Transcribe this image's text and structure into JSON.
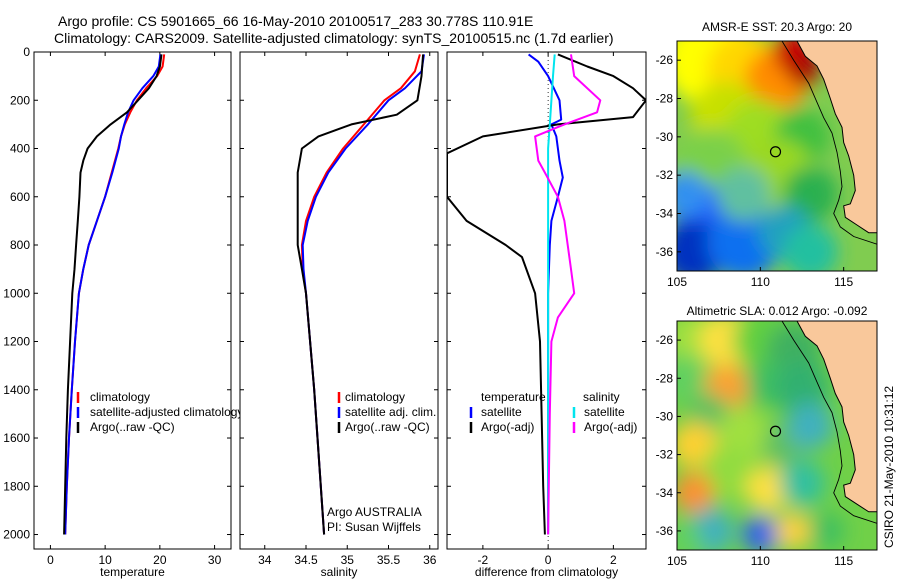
{
  "header": {
    "line1": "Argo profile: CS 5901665_66 16-May-2010 20100517_283 30.778S 110.91E",
    "line2": "Climatology: CARS2009. Satellite-adjusted climatology: synTS_20100515.nc (1.7d earlier)"
  },
  "side_label": "CSIRO 21-May-2010 10:31:12",
  "chart_data": [
    {
      "type": "line",
      "id": "temperature",
      "xlabel": "temperature",
      "ylabel": "",
      "xlim": [
        -3,
        33
      ],
      "ylim": [
        2060,
        0
      ],
      "y_reversed": true,
      "xticks": [
        0,
        10,
        20,
        30
      ],
      "yticks": [
        0,
        200,
        400,
        600,
        800,
        1000,
        1200,
        1400,
        1600,
        1800,
        2000
      ],
      "legend": {
        "position": "bottom-right",
        "entries": [
          "climatology",
          "satellite-adjusted climatology",
          "Argo(..raw -QC)"
        ]
      },
      "series": [
        {
          "name": "climatology",
          "color": "#ff0000",
          "points": [
            [
              20.8,
              10
            ],
            [
              20.5,
              60
            ],
            [
              19.5,
              100
            ],
            [
              17.5,
              150
            ],
            [
              15.8,
              200
            ],
            [
              14.6,
              250
            ],
            [
              13.6,
              300
            ],
            [
              12.9,
              350
            ],
            [
              12.4,
              400
            ],
            [
              11.2,
              500
            ],
            [
              10.0,
              600
            ],
            [
              8.5,
              700
            ],
            [
              7.0,
              800
            ],
            [
              6.0,
              900
            ],
            [
              5.2,
              1000
            ],
            [
              4.5,
              1200
            ],
            [
              3.9,
              1400
            ],
            [
              3.4,
              1600
            ],
            [
              3.0,
              1800
            ],
            [
              2.7,
              2000
            ]
          ]
        },
        {
          "name": "satellite-adjusted climatology",
          "color": "#0000ff",
          "points": [
            [
              20.1,
              10
            ],
            [
              19.8,
              60
            ],
            [
              18.8,
              100
            ],
            [
              16.8,
              150
            ],
            [
              15.2,
              200
            ],
            [
              14.2,
              250
            ],
            [
              13.5,
              300
            ],
            [
              12.9,
              350
            ],
            [
              12.5,
              400
            ],
            [
              11.3,
              500
            ],
            [
              10.0,
              600
            ],
            [
              8.5,
              700
            ],
            [
              7.0,
              800
            ],
            [
              6.0,
              900
            ],
            [
              5.2,
              1000
            ],
            [
              4.5,
              1200
            ],
            [
              3.9,
              1400
            ],
            [
              3.4,
              1600
            ],
            [
              3.0,
              1800
            ],
            [
              2.7,
              2000
            ]
          ]
        },
        {
          "name": "Argo(..raw -QC)",
          "color": "#000000",
          "points": [
            [
              20.3,
              10
            ],
            [
              20.0,
              60
            ],
            [
              19.4,
              100
            ],
            [
              18.0,
              150
            ],
            [
              16.0,
              200
            ],
            [
              14.0,
              250
            ],
            [
              11.0,
              300
            ],
            [
              8.5,
              350
            ],
            [
              6.8,
              400
            ],
            [
              6.0,
              450
            ],
            [
              5.5,
              500
            ],
            [
              5.3,
              600
            ],
            [
              5.0,
              700
            ],
            [
              4.7,
              800
            ],
            [
              4.4,
              900
            ],
            [
              4.0,
              1000
            ],
            [
              3.6,
              1200
            ],
            [
              3.2,
              1400
            ],
            [
              2.9,
              1600
            ],
            [
              2.7,
              1800
            ],
            [
              2.5,
              2000
            ]
          ]
        }
      ]
    },
    {
      "type": "line",
      "id": "salinity",
      "xlabel": "salinity",
      "xlim": [
        33.7,
        36.1
      ],
      "ylim": [
        2060,
        0
      ],
      "y_reversed": true,
      "xticks": [
        34,
        34.5,
        35,
        35.5,
        36
      ],
      "legend": {
        "position": "bottom-right",
        "entries": [
          "climatology",
          "satellite adj. clim.",
          "Argo(..raw -QC)"
        ]
      },
      "series": [
        {
          "name": "climatology",
          "color": "#ff0000",
          "points": [
            [
              35.88,
              10
            ],
            [
              35.82,
              80
            ],
            [
              35.65,
              150
            ],
            [
              35.45,
              200
            ],
            [
              35.2,
              300
            ],
            [
              34.95,
              400
            ],
            [
              34.75,
              500
            ],
            [
              34.6,
              600
            ],
            [
              34.5,
              700
            ],
            [
              34.45,
              800
            ],
            [
              34.46,
              900
            ],
            [
              34.5,
              1000
            ],
            [
              34.55,
              1200
            ],
            [
              34.6,
              1400
            ],
            [
              34.64,
              1600
            ],
            [
              34.68,
              1800
            ],
            [
              34.72,
              2000
            ]
          ]
        },
        {
          "name": "satellite adj. clim.",
          "color": "#0000ff",
          "points": [
            [
              35.93,
              10
            ],
            [
              35.9,
              80
            ],
            [
              35.7,
              150
            ],
            [
              35.5,
              200
            ],
            [
              35.25,
              300
            ],
            [
              34.98,
              400
            ],
            [
              34.77,
              500
            ],
            [
              34.62,
              600
            ],
            [
              34.52,
              700
            ],
            [
              34.46,
              800
            ],
            [
              34.47,
              900
            ],
            [
              34.5,
              1000
            ],
            [
              34.55,
              1200
            ],
            [
              34.6,
              1400
            ],
            [
              34.64,
              1600
            ],
            [
              34.68,
              1800
            ],
            [
              34.72,
              2000
            ]
          ]
        },
        {
          "name": "Argo(..raw -QC)",
          "color": "#000000",
          "points": [
            [
              35.92,
              10
            ],
            [
              35.9,
              100
            ],
            [
              35.85,
              200
            ],
            [
              35.6,
              260
            ],
            [
              35.05,
              300
            ],
            [
              34.65,
              350
            ],
            [
              34.45,
              400
            ],
            [
              34.4,
              500
            ],
            [
              34.4,
              600
            ],
            [
              34.4,
              800
            ],
            [
              34.45,
              900
            ],
            [
              34.5,
              1000
            ],
            [
              34.55,
              1200
            ],
            [
              34.6,
              1400
            ],
            [
              34.64,
              1600
            ],
            [
              34.68,
              1800
            ],
            [
              34.72,
              2000
            ]
          ]
        }
      ]
    },
    {
      "type": "line",
      "id": "difference",
      "xlabel": "difference from climatology",
      "xlim": [
        -3.1,
        3.0
      ],
      "ylim": [
        2060,
        0
      ],
      "y_reversed": true,
      "xticks": [
        -2,
        0,
        2
      ],
      "legend": {
        "position": "bottom",
        "group_titles": [
          "temperature",
          "salinity"
        ],
        "entries": [
          "satellite",
          "Argo(-adj)",
          "satellite",
          "Argo(-adj)"
        ]
      },
      "series": [
        {
          "name": "satellite (temperature)",
          "color": "#0000ff",
          "points": [
            [
              -0.6,
              10
            ],
            [
              -0.3,
              40
            ],
            [
              0.0,
              100
            ],
            [
              0.35,
              200
            ],
            [
              0.4,
              280
            ],
            [
              0.1,
              300
            ],
            [
              0.25,
              350
            ],
            [
              0.35,
              450
            ],
            [
              0.45,
              520
            ],
            [
              0.3,
              600
            ],
            [
              0.1,
              700
            ],
            [
              0.05,
              800
            ],
            [
              0.0,
              1000
            ],
            [
              0.0,
              1500
            ],
            [
              0.0,
              2000
            ]
          ]
        },
        {
          "name": "Argo(-adj) (temperature)",
          "color": "#000000",
          "points": [
            [
              0.3,
              10
            ],
            [
              1.2,
              60
            ],
            [
              2.0,
              100
            ],
            [
              2.6,
              150
            ],
            [
              3.0,
              200
            ],
            [
              2.6,
              270
            ],
            [
              0.3,
              300
            ],
            [
              -2.0,
              350
            ],
            [
              -3.1,
              420
            ],
            [
              -3.1,
              600
            ],
            [
              -2.5,
              700
            ],
            [
              -1.3,
              800
            ],
            [
              -0.8,
              850
            ],
            [
              -0.4,
              1000
            ],
            [
              -0.25,
              1200
            ],
            [
              -0.2,
              1500
            ],
            [
              -0.15,
              1800
            ],
            [
              -0.1,
              2000
            ]
          ]
        },
        {
          "name": "satellite (salinity)",
          "color": "#00e5ee",
          "points": [
            [
              0.2,
              10
            ],
            [
              0.15,
              100
            ],
            [
              0.1,
              200
            ],
            [
              0.05,
              300
            ],
            [
              0.0,
              400
            ],
            [
              0.0,
              600
            ],
            [
              0.0,
              800
            ],
            [
              0.0,
              1000
            ],
            [
              0.0,
              1500
            ],
            [
              0.0,
              2000
            ]
          ]
        },
        {
          "name": "Argo(-adj) (salinity)",
          "color": "#ff00ff",
          "points": [
            [
              0.7,
              10
            ],
            [
              0.8,
              100
            ],
            [
              1.6,
              200
            ],
            [
              1.5,
              250
            ],
            [
              0.5,
              300
            ],
            [
              -0.4,
              350
            ],
            [
              -0.3,
              450
            ],
            [
              -0.1,
              500
            ],
            [
              0.3,
              600
            ],
            [
              0.5,
              700
            ],
            [
              0.6,
              800
            ],
            [
              0.7,
              900
            ],
            [
              0.8,
              1000
            ],
            [
              0.3,
              1100
            ],
            [
              0.1,
              1200
            ],
            [
              0.05,
              1500
            ],
            [
              0.0,
              2000
            ]
          ]
        }
      ]
    },
    {
      "type": "heatmap",
      "id": "sst-map",
      "title": "AMSR-E SST: 20.3  Argo: 20",
      "xlim": [
        105,
        117
      ],
      "ylim": [
        -37,
        -25
      ],
      "xticks": [
        105,
        110,
        115
      ],
      "yticks": [
        -26,
        -28,
        -30,
        -32,
        -34,
        -36
      ],
      "float_position": {
        "lon": 110.91,
        "lat": -30.778
      },
      "land_color": "#f9c89b"
    },
    {
      "type": "heatmap",
      "id": "sla-map",
      "title": "Altimetric SLA: 0.012  Argo: -0.092",
      "xlim": [
        105,
        117
      ],
      "ylim": [
        -37,
        -25
      ],
      "xticks": [
        105,
        110,
        115
      ],
      "yticks": [
        -26,
        -28,
        -30,
        -32,
        -34,
        -36
      ],
      "float_position": {
        "lon": 110.91,
        "lat": -30.778
      },
      "land_color": "#f9c89b"
    }
  ]
}
